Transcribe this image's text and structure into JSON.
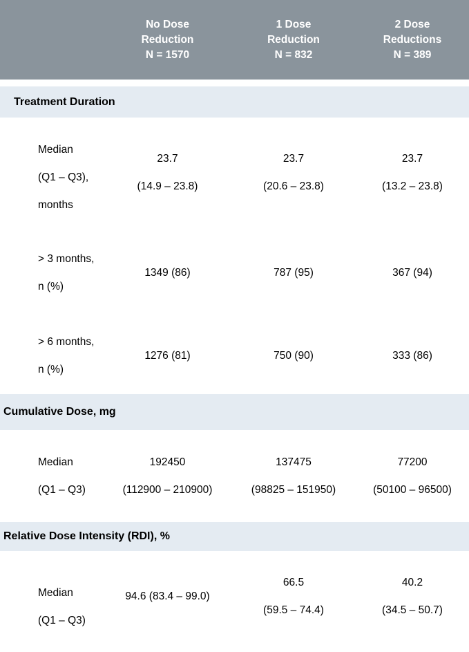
{
  "colors": {
    "header_bg": "#8A949C",
    "header_text": "#FFFFFF",
    "section_bg": "#E4EBF2",
    "body_text": "#000000"
  },
  "columns": [
    {
      "title_line1": "No Dose",
      "title_line2": "Reduction",
      "n": "N = 1570"
    },
    {
      "title_line1": "1 Dose",
      "title_line2": "Reduction",
      "n": "N = 832"
    },
    {
      "title_line1": "2 Dose",
      "title_line2": "Reductions",
      "n": "N = 389"
    }
  ],
  "sections": [
    {
      "title": "Treatment Duration",
      "rows": [
        {
          "label_lines": [
            "Median",
            "(Q1 – Q3),",
            "months"
          ],
          "values": [
            {
              "lines": [
                "23.7",
                "(14.9 – 23.8)"
              ]
            },
            {
              "lines": [
                "23.7",
                "(20.6 – 23.8)"
              ]
            },
            {
              "lines": [
                "23.7",
                "(13.2 – 23.8)"
              ]
            }
          ]
        },
        {
          "label_lines": [
            "> 3 months,",
            "n (%)"
          ],
          "values": [
            {
              "lines": [
                "1349 (86)"
              ]
            },
            {
              "lines": [
                "787 (95)"
              ]
            },
            {
              "lines": [
                "367 (94)"
              ]
            }
          ]
        },
        {
          "label_lines": [
            "> 6 months,",
            "n (%)"
          ],
          "values": [
            {
              "lines": [
                "1276 (81)"
              ]
            },
            {
              "lines": [
                "750 (90)"
              ]
            },
            {
              "lines": [
                "333 (86)"
              ]
            }
          ]
        }
      ]
    },
    {
      "title": "Cumulative Dose, mg",
      "rows": [
        {
          "label_lines": [
            "Median",
            "(Q1 – Q3)"
          ],
          "values": [
            {
              "lines": [
                "192450",
                "(112900 – 210900)"
              ]
            },
            {
              "lines": [
                "137475",
                "(98825 – 151950)"
              ]
            },
            {
              "lines": [
                "77200",
                "(50100 – 96500)"
              ]
            }
          ]
        }
      ]
    },
    {
      "title": "Relative Dose Intensity (RDI), %",
      "rows": [
        {
          "label_lines": [
            "Median",
            "(Q1 – Q3)"
          ],
          "values": [
            {
              "lines": [
                "94.6 (83.4 – 99.0)"
              ]
            },
            {
              "lines": [
                "66.5",
                "(59.5 – 74.4)"
              ]
            },
            {
              "lines": [
                "40.2",
                "(34.5 – 50.7)"
              ]
            }
          ]
        }
      ]
    }
  ]
}
